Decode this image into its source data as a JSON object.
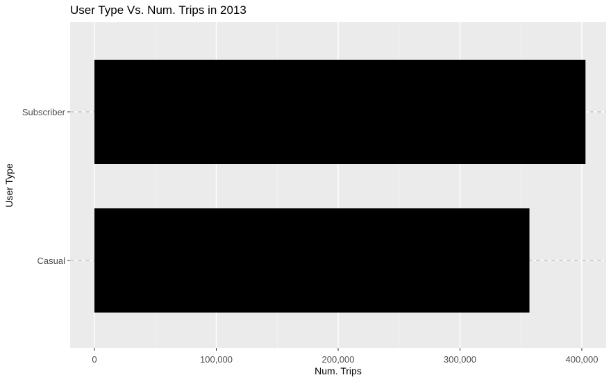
{
  "chart_data": {
    "type": "bar",
    "orientation": "horizontal",
    "title": "User Type Vs. Num. Trips in 2013",
    "xlabel": "Num. Trips",
    "ylabel": "User Type",
    "categories": [
      "Casual",
      "Subscriber"
    ],
    "values": [
      357000,
      403000
    ],
    "xlim": [
      -20000,
      421000
    ],
    "xticks": [
      0,
      100000,
      200000,
      300000,
      400000
    ],
    "xtick_labels": [
      "0",
      "100,000",
      "200,000",
      "300,000",
      "400,000"
    ],
    "bar_color": "#000000",
    "panel_color": "#ebebeb",
    "grid": true,
    "legend": "none",
    "category_reference_lines": "dashed",
    "reference_line_color": "#bfbfbf"
  }
}
